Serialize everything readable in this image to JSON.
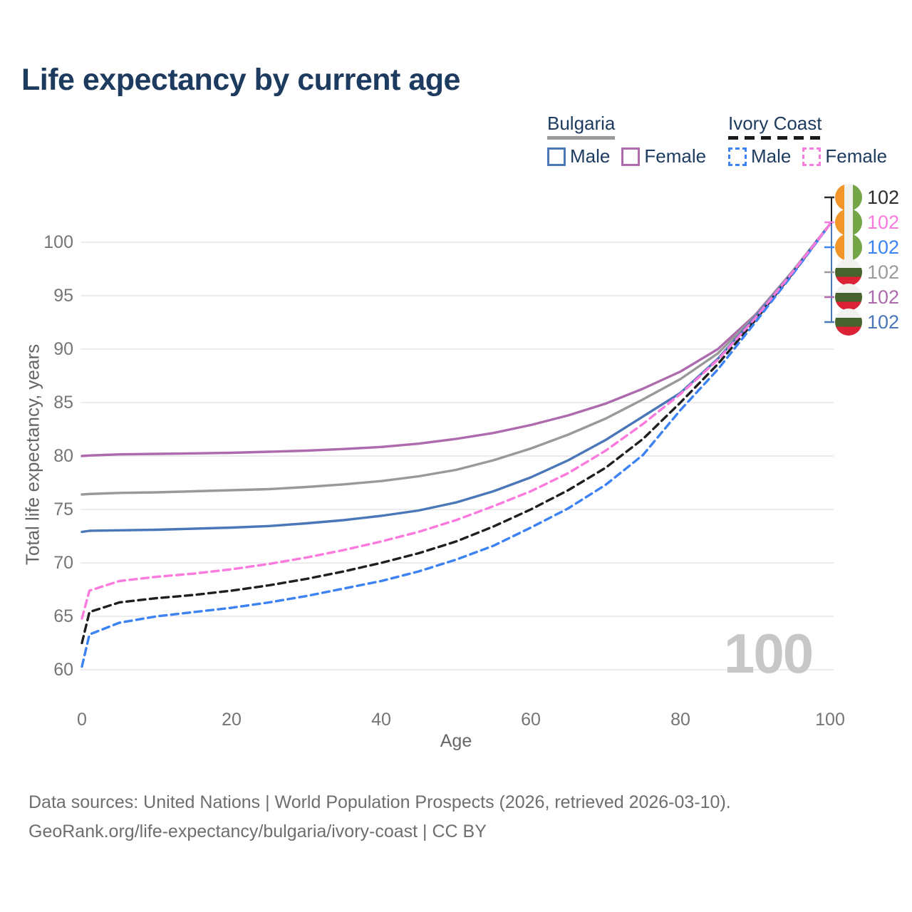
{
  "title": "Life expectancy by current age",
  "legend": {
    "groups": [
      {
        "label": "Bulgaria",
        "line_style": "solid",
        "underline_color": "#999999",
        "items": [
          {
            "label": "Male",
            "color": "#4a77b8",
            "dashed": false
          },
          {
            "label": "Female",
            "color": "#ad6bad",
            "dashed": false
          }
        ]
      },
      {
        "label": "Ivory Coast",
        "line_style": "dashed",
        "underline_color": "#1a1a1a",
        "items": [
          {
            "label": "Male",
            "color": "#3d82f2",
            "dashed": true
          },
          {
            "label": "Female",
            "color": "#fb7add",
            "dashed": true
          }
        ]
      }
    ]
  },
  "y_axis": {
    "title": "Total life expectancy, years"
  },
  "x_axis": {
    "title": "Age"
  },
  "watermark": "100",
  "end_labels": [
    {
      "flag": "ivory-coast",
      "series": "Ivory Coast Total",
      "value": "102",
      "color": "#2b2b2b"
    },
    {
      "flag": "ivory-coast",
      "series": "Ivory Coast Female",
      "value": "102",
      "color": "#fb7add"
    },
    {
      "flag": "ivory-coast",
      "series": "Ivory Coast Male",
      "value": "102",
      "color": "#3d82f2"
    },
    {
      "flag": "bulgaria",
      "series": "Bulgaria Total",
      "value": "102",
      "color": "#9b9b9b"
    },
    {
      "flag": "bulgaria",
      "series": "Bulgaria Female",
      "value": "102",
      "color": "#ad6bad"
    },
    {
      "flag": "bulgaria",
      "series": "Bulgaria Male",
      "value": "102",
      "color": "#4a77b8"
    }
  ],
  "footer": {
    "line1": "Data sources: United Nations | World Population Prospects (2026, retrieved 2026-03-10).",
    "line2": "GeoRank.org/life-expectancy/bulgaria/ivory-coast | CC BY"
  },
  "chart_data": {
    "type": "line",
    "title": "Life expectancy by current age",
    "xlabel": "Age",
    "ylabel": "Total life expectancy, years",
    "xlim": [
      0,
      100
    ],
    "ylim": [
      60,
      102
    ],
    "x_ticks": [
      0,
      20,
      40,
      60,
      80,
      100
    ],
    "y_ticks": [
      60,
      65,
      70,
      75,
      80,
      85,
      90,
      95,
      100
    ],
    "grid": "horizontal",
    "legend_position": "top-right",
    "hovered_age": 100,
    "x": [
      0,
      1,
      5,
      10,
      15,
      20,
      25,
      30,
      35,
      40,
      45,
      50,
      55,
      60,
      65,
      70,
      75,
      80,
      85,
      90,
      95,
      100
    ],
    "series": [
      {
        "name": "Bulgaria Female",
        "color": "#ad6bad",
        "dash": false,
        "end_label": "102",
        "values": [
          80.0,
          80.05,
          80.15,
          80.2,
          80.25,
          80.3,
          80.4,
          80.5,
          80.65,
          80.85,
          81.15,
          81.6,
          82.15,
          82.9,
          83.8,
          84.9,
          86.3,
          87.9,
          90.0,
          93.2,
          97.3,
          101.7
        ]
      },
      {
        "name": "Bulgaria Total",
        "color": "#999999",
        "dash": false,
        "end_label": "102",
        "values": [
          76.4,
          76.45,
          76.55,
          76.6,
          76.7,
          76.8,
          76.9,
          77.1,
          77.35,
          77.65,
          78.1,
          78.7,
          79.6,
          80.7,
          82.0,
          83.5,
          85.3,
          87.2,
          89.6,
          93.1,
          97.3,
          101.7
        ]
      },
      {
        "name": "Bulgaria Male",
        "color": "#4a77b8",
        "dash": false,
        "end_label": "102",
        "values": [
          72.9,
          73.0,
          73.05,
          73.1,
          73.2,
          73.3,
          73.45,
          73.7,
          74.0,
          74.4,
          74.9,
          75.65,
          76.7,
          78.0,
          79.6,
          81.5,
          83.7,
          85.9,
          89.1,
          93.0,
          97.2,
          101.7
        ]
      },
      {
        "name": "Ivory Coast Total",
        "color": "#1f1f1f",
        "dash": true,
        "end_label": "102",
        "values": [
          62.5,
          65.4,
          66.3,
          66.7,
          67.0,
          67.4,
          67.9,
          68.5,
          69.2,
          70.0,
          70.9,
          72.0,
          73.4,
          75.0,
          76.8,
          78.9,
          81.6,
          85.0,
          88.6,
          92.7,
          97.1,
          101.7
        ]
      },
      {
        "name": "Ivory Coast Male",
        "color": "#3d82f2",
        "dash": true,
        "end_label": "102",
        "values": [
          60.3,
          63.3,
          64.4,
          65.0,
          65.4,
          65.8,
          66.3,
          66.9,
          67.6,
          68.3,
          69.2,
          70.3,
          71.6,
          73.3,
          75.1,
          77.3,
          80.1,
          84.3,
          88.1,
          92.5,
          97.0,
          101.7
        ]
      },
      {
        "name": "Ivory Coast Female",
        "color": "#fb7add",
        "dash": true,
        "end_label": "102",
        "values": [
          64.8,
          67.4,
          68.3,
          68.7,
          69.0,
          69.4,
          69.9,
          70.5,
          71.2,
          72.0,
          72.9,
          74.0,
          75.3,
          76.7,
          78.4,
          80.5,
          83.0,
          85.8,
          89.0,
          92.9,
          97.2,
          101.7
        ]
      }
    ]
  }
}
